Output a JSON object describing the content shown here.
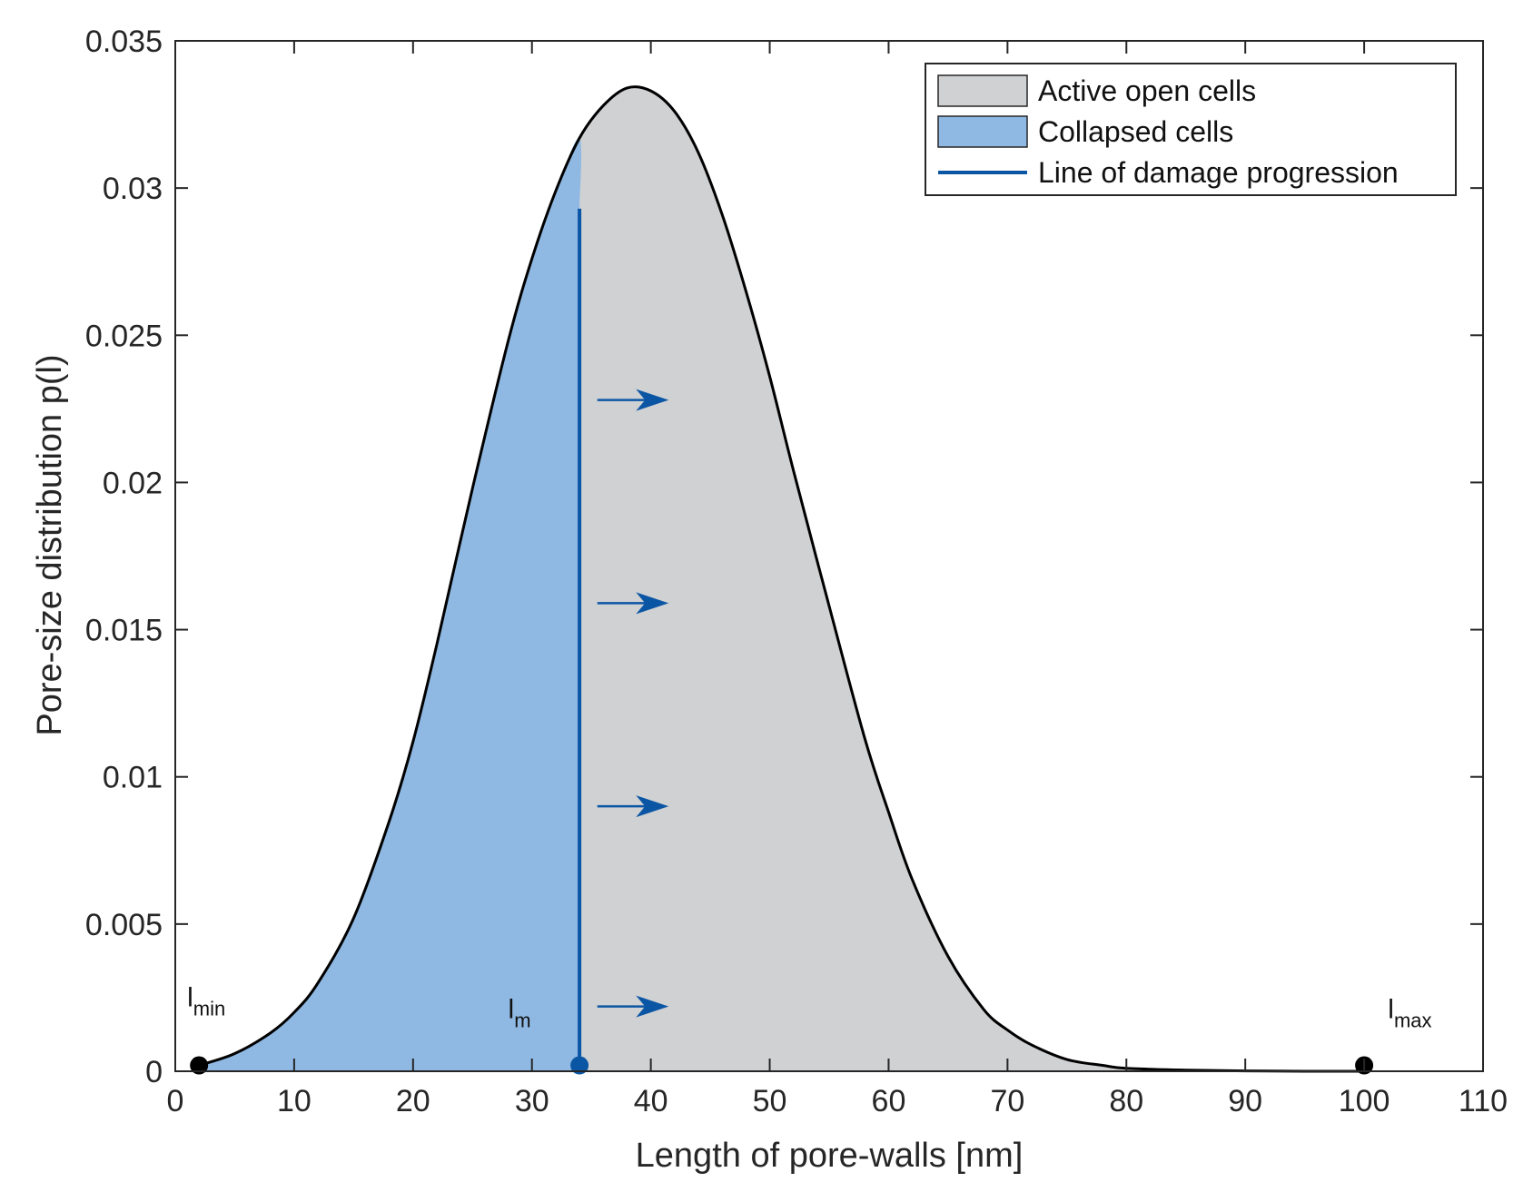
{
  "chart_data": {
    "type": "area",
    "xlabel": "Length of pore-walls [nm]",
    "ylabel": "Pore-size distribution p(l)",
    "xlim": [
      0,
      110
    ],
    "ylim": [
      0,
      0.035
    ],
    "xticks": [
      0,
      10,
      20,
      30,
      40,
      50,
      60,
      70,
      80,
      90,
      100,
      110
    ],
    "xtick_labels": [
      "0",
      "10",
      "20",
      "30",
      "40",
      "50",
      "60",
      "70",
      "80",
      "90",
      "100",
      "110"
    ],
    "yticks": [
      0,
      0.005,
      0.01,
      0.015,
      0.02,
      0.025,
      0.03,
      0.035
    ],
    "ytick_labels": [
      "0",
      "0.005",
      "0.01",
      "0.015",
      "0.02",
      "0.025",
      "0.03",
      "0.035"
    ],
    "curve": {
      "x": [
        2,
        5,
        8,
        10,
        12,
        15,
        18,
        20,
        22,
        25,
        28,
        30,
        32,
        34,
        36,
        38,
        40,
        42,
        44,
        46,
        48,
        50,
        52,
        55,
        58,
        60,
        62,
        65,
        68,
        70,
        72,
        75,
        78,
        80,
        85,
        90,
        95,
        100
      ],
      "y": [
        0.0002,
        0.0006,
        0.0013,
        0.002,
        0.003,
        0.0052,
        0.0085,
        0.0112,
        0.0145,
        0.0198,
        0.0248,
        0.0276,
        0.0299,
        0.0317,
        0.0328,
        0.0334,
        0.0333,
        0.0326,
        0.0312,
        0.0291,
        0.0265,
        0.0236,
        0.0204,
        0.0158,
        0.0113,
        0.0088,
        0.0065,
        0.0039,
        0.0021,
        0.0014,
        0.0009,
        0.0004,
        0.0002,
        0.0001,
        4e-05,
        1e-05,
        0.0,
        0.0
      ]
    },
    "damage_line_x": 34,
    "damage_line_top": 0.0293,
    "arrows_y": [
      0.0228,
      0.0159,
      0.009,
      0.0022
    ],
    "arrows_x": [
      35.5,
      41.5
    ],
    "points": [
      {
        "name": "l_min",
        "x": 2,
        "y": 0.0002,
        "color": "#000000"
      },
      {
        "name": "l_m",
        "x": 34,
        "y": 0.0002,
        "color": "#0b56a4"
      },
      {
        "name": "l_max",
        "x": 100,
        "y": 0.0002,
        "color": "#000000"
      }
    ],
    "annotations": {
      "l_min": {
        "main": "l",
        "sub": "min",
        "x": 1,
        "y": 0.0022
      },
      "l_m": {
        "main": "l",
        "sub": "m",
        "x": 28,
        "y": 0.0018
      },
      "l_max": {
        "main": "l",
        "sub": "max",
        "x": 102,
        "y": 0.0018
      }
    },
    "legend": {
      "position": "top-right",
      "entries": [
        {
          "label": "Active open cells",
          "kind": "patch",
          "color": "#d0d1d3"
        },
        {
          "label": "Collapsed cells",
          "kind": "patch",
          "color": "#8fb9e3"
        },
        {
          "label": "Line of damage progression",
          "kind": "line",
          "color": "#0b56a4"
        }
      ]
    },
    "colors": {
      "active": "#d0d1d3",
      "collapsed": "#8fb9e3",
      "damage": "#0b56a4",
      "curve": "#000000"
    }
  }
}
